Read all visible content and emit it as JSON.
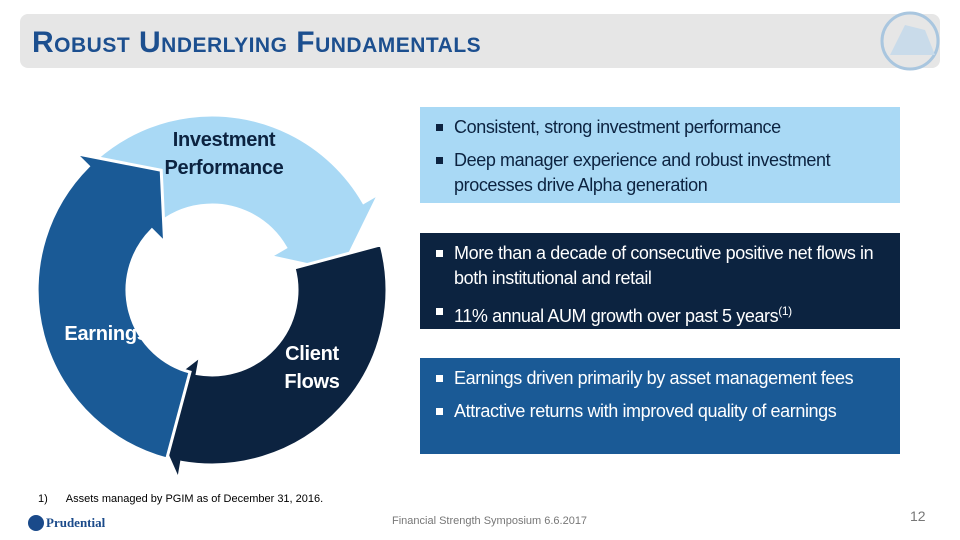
{
  "header": {
    "title": "Robust Underlying Fundamentals"
  },
  "cycle": {
    "nodes": [
      {
        "label": "Investment Performance"
      },
      {
        "label": "Client Flows"
      },
      {
        "label": "Earnings"
      }
    ]
  },
  "boxes": [
    {
      "bullets": [
        {
          "text": "Consistent, strong investment performance"
        },
        {
          "text": "Deep manager experience and robust investment processes drive Alpha generation"
        }
      ]
    },
    {
      "bullets": [
        {
          "text": "More than a decade of consecutive positive net flows in both institutional and retail"
        },
        {
          "text": "11% annual AUM growth over past 5 years",
          "sup": "(1)"
        }
      ]
    },
    {
      "bullets": [
        {
          "text": "Earnings driven primarily by asset management fees"
        },
        {
          "text": "Attractive returns with improved quality of earnings"
        }
      ]
    }
  ],
  "footnote": {
    "number": "1)",
    "text": "Assets managed by PGIM as of December 31, 2016."
  },
  "footer": {
    "logo": "Prudential",
    "event": "Financial Strength Symposium 6.6.2017",
    "page": "12"
  }
}
